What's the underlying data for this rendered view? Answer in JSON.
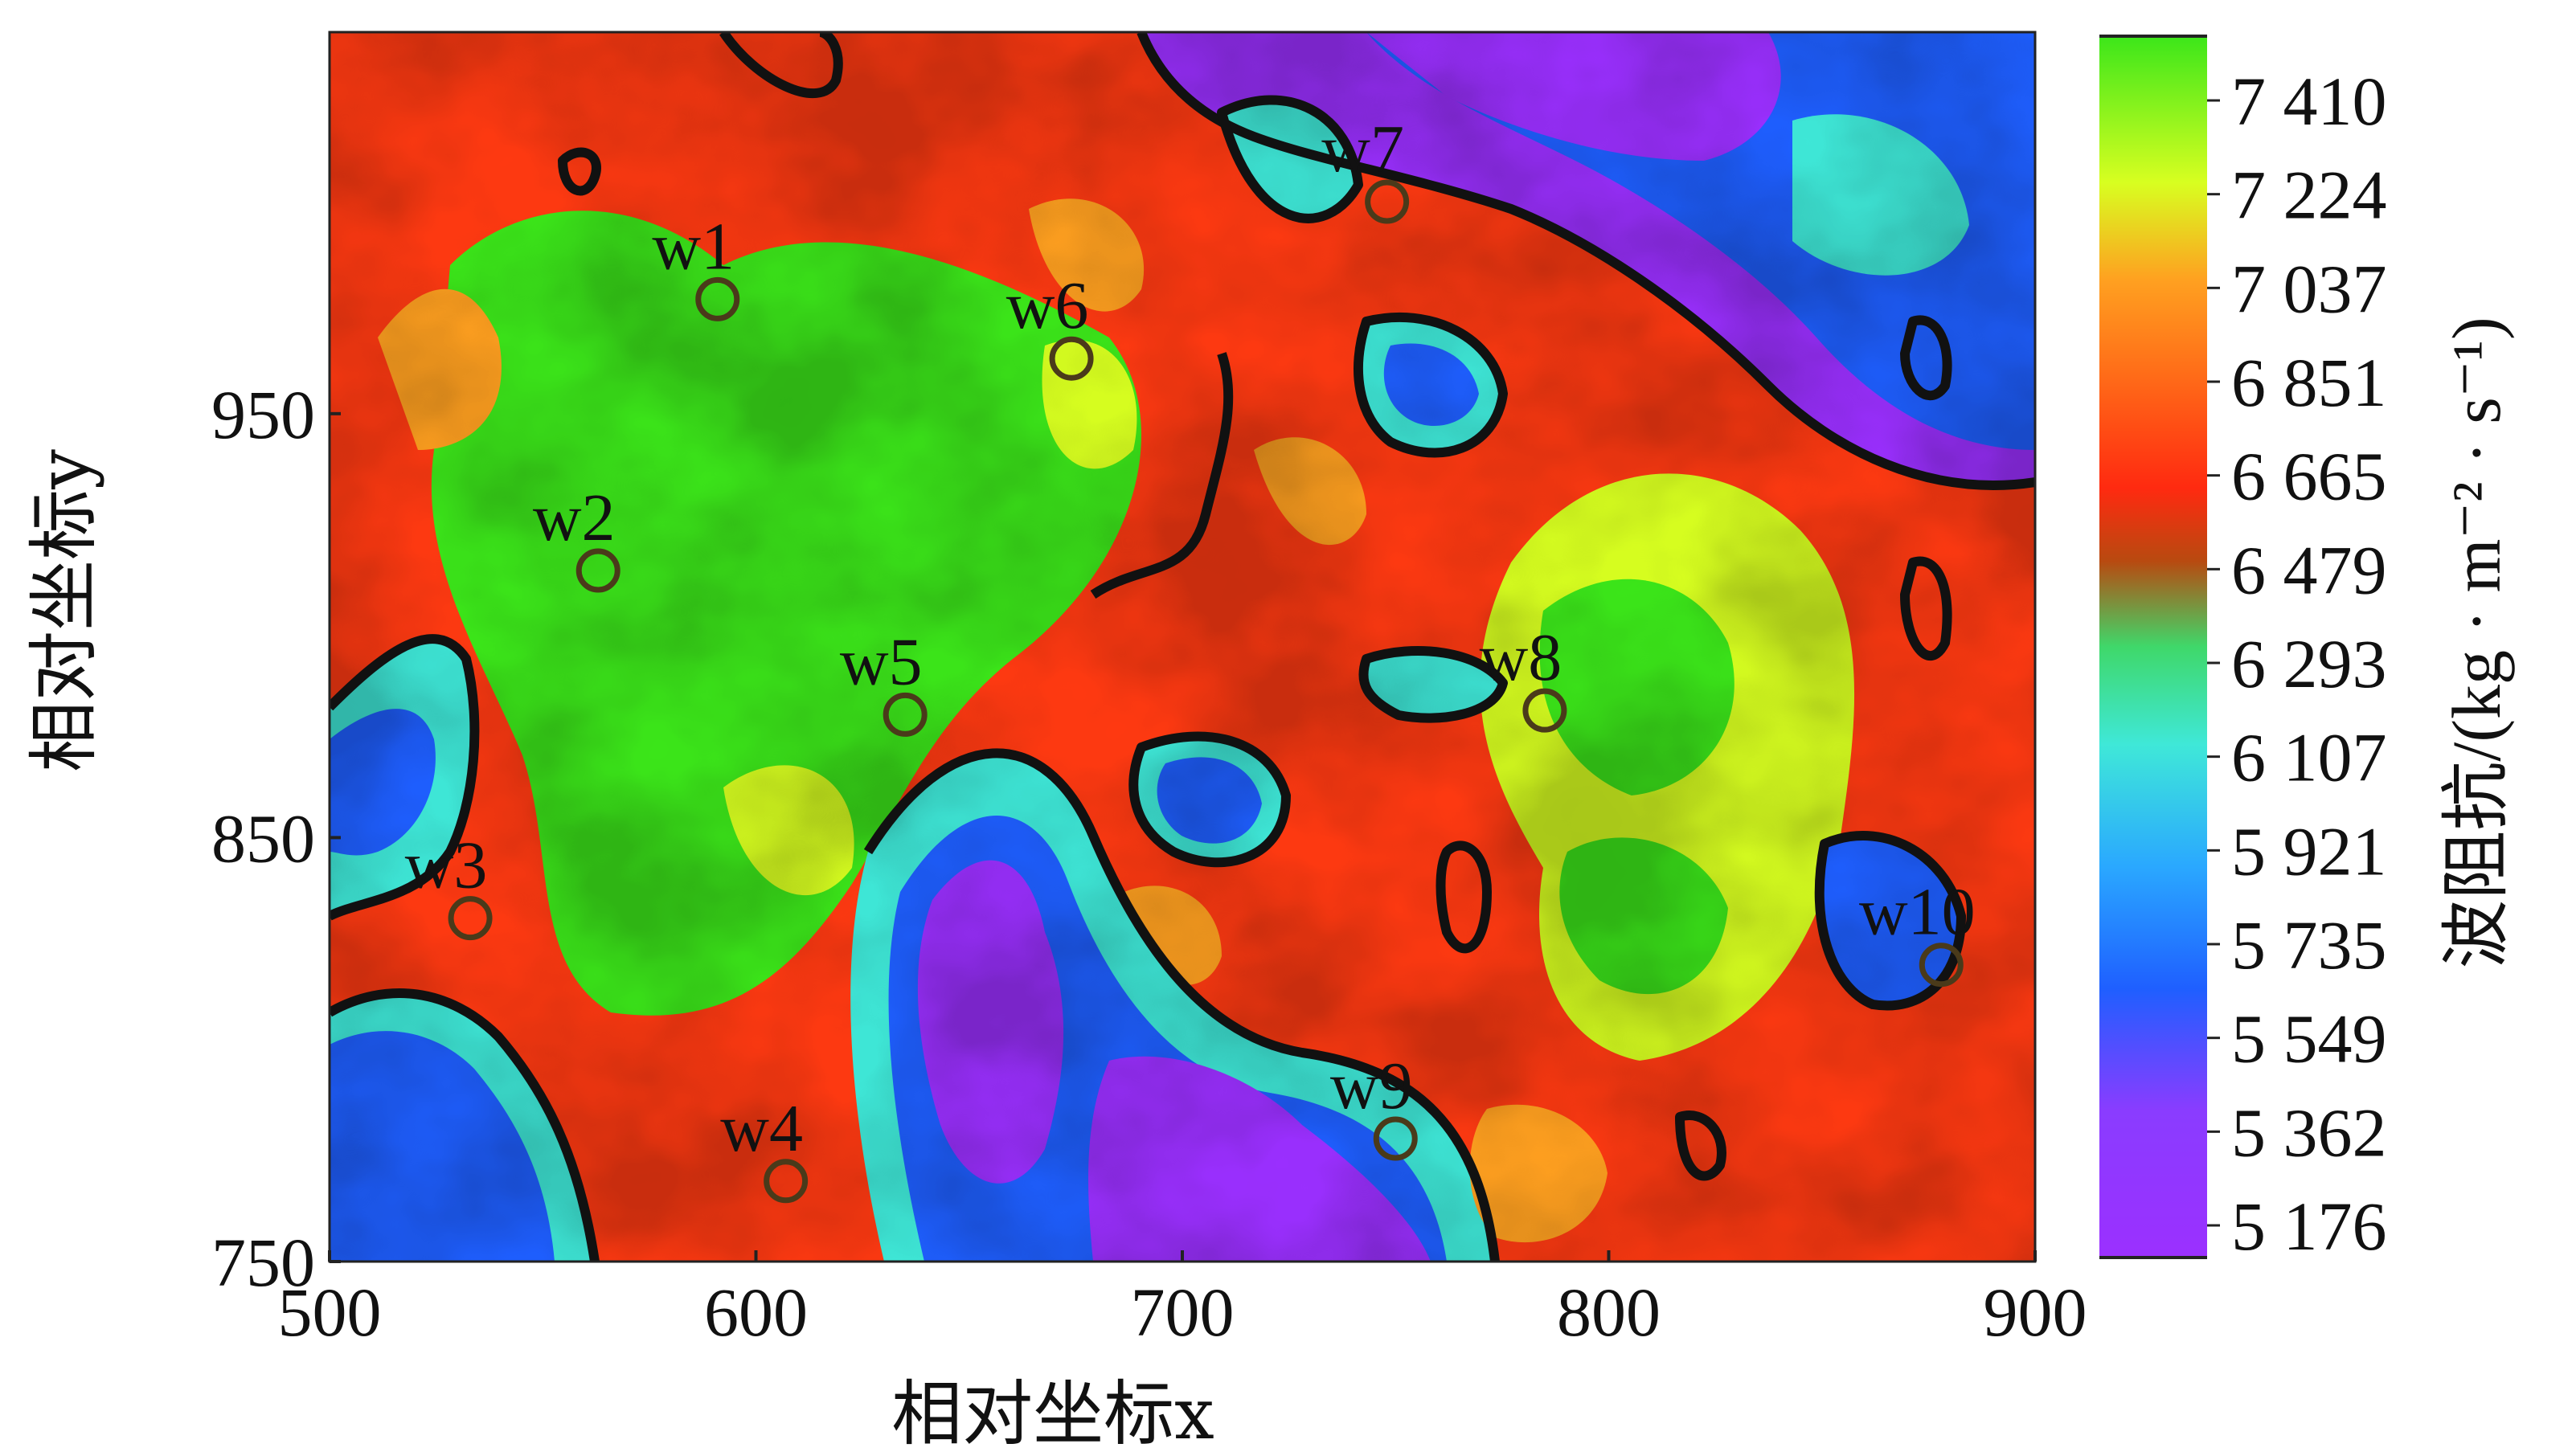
{
  "chart_data": {
    "type": "heatmap",
    "xlabel": "相对坐标x",
    "ylabel": "相对坐标y",
    "xlim": [
      500,
      900
    ],
    "ylim": [
      750,
      1040
    ],
    "xticks": [
      "500",
      "600",
      "700",
      "800",
      "900"
    ],
    "yticks": [
      "750",
      "850",
      "950"
    ],
    "colorbar": {
      "label": "波阻抗/(kg · m⁻² · s⁻¹)",
      "ticks": [
        "7 410",
        "7 224",
        "7 037",
        "6 851",
        "6 665",
        "6 479",
        "6 293",
        "6 107",
        "5 921",
        "5 735",
        "5 549",
        "5 362",
        "5 176"
      ],
      "range": [
        5100,
        7480
      ],
      "colors": {
        "low": "#9b30ff",
        "lowmid": "#1f5fff",
        "mid": "#3fe8d8",
        "midhigh": "#ff2a10",
        "high_orange": "#ffa020",
        "high_yellow": "#d8ff20",
        "high": "#3ce61a"
      }
    },
    "wells": [
      {
        "name": "w1",
        "x": 591,
        "y": 977
      },
      {
        "name": "w2",
        "x": 563,
        "y": 913
      },
      {
        "name": "w3",
        "x": 533,
        "y": 831
      },
      {
        "name": "w4",
        "x": 607,
        "y": 769
      },
      {
        "name": "w5",
        "x": 635,
        "y": 879
      },
      {
        "name": "w6",
        "x": 674,
        "y": 963
      },
      {
        "name": "w7",
        "x": 748,
        "y": 1000
      },
      {
        "name": "w8",
        "x": 785,
        "y": 880
      },
      {
        "name": "w9",
        "x": 750,
        "y": 779
      },
      {
        "name": "w10",
        "x": 878,
        "y": 820
      }
    ]
  }
}
